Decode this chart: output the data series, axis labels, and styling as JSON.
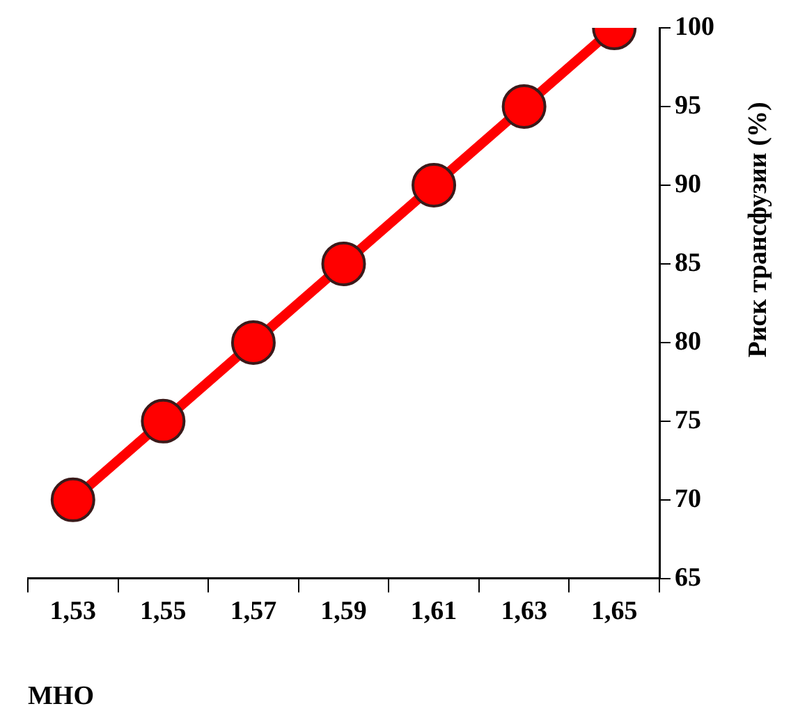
{
  "chart_data": {
    "type": "line",
    "xlabel": "МНО",
    "ylabel": "Риск трансфузии (%)",
    "categories": [
      "1,53",
      "1,55",
      "1,57",
      "1,59",
      "1,61",
      "1,63",
      "1,65"
    ],
    "series": [
      {
        "color": "#ff0000",
        "values": [
          70,
          75,
          80,
          85,
          90,
          95,
          100
        ]
      }
    ],
    "ylim": [
      65,
      100
    ],
    "yticks": [
      65,
      70,
      75,
      80,
      85,
      90,
      95,
      100
    ],
    "grid": false,
    "marker": "circle",
    "line_style": "solid"
  }
}
